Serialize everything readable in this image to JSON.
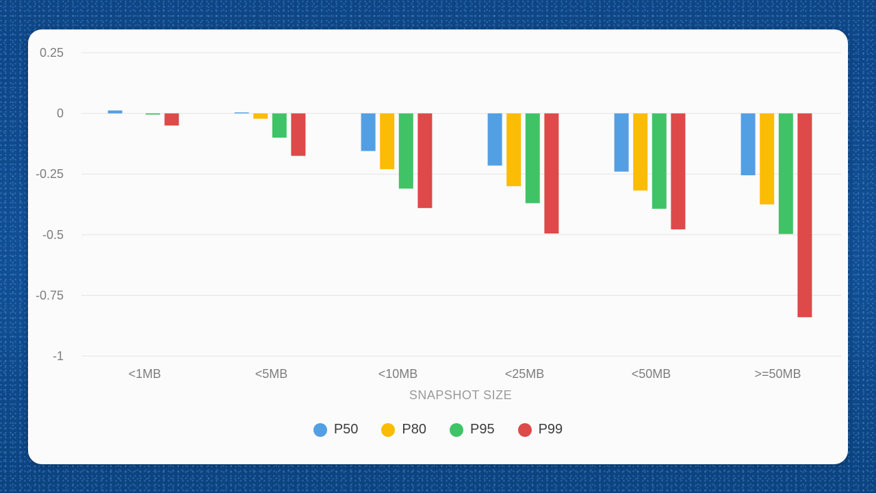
{
  "chart_data": {
    "type": "bar",
    "xlabel": "SNAPSHOT SIZE",
    "ylabel": "",
    "ylim": [
      -1,
      0.25
    ],
    "yticks": [
      "0.25",
      "0",
      "-0.25",
      "-0.5",
      "-0.75",
      "-1"
    ],
    "ytick_values": [
      0.25,
      0,
      -0.25,
      -0.5,
      -0.75,
      -1
    ],
    "categories": [
      "<1MB",
      "<5MB",
      "<10MB",
      "<25MB",
      "<50MB",
      ">=50MB"
    ],
    "series": [
      {
        "name": "P50",
        "color": "#539fe3",
        "values": [
          0.012,
          0.004,
          -0.155,
          -0.215,
          -0.24,
          -0.255
        ]
      },
      {
        "name": "P80",
        "color": "#fbbc05",
        "values": [
          0.0,
          -0.022,
          -0.23,
          -0.3,
          -0.318,
          -0.375
        ]
      },
      {
        "name": "P95",
        "color": "#40c366",
        "values": [
          -0.005,
          -0.1,
          -0.31,
          -0.37,
          -0.393,
          -0.497
        ]
      },
      {
        "name": "P99",
        "color": "#de4949",
        "values": [
          -0.05,
          -0.175,
          -0.39,
          -0.495,
          -0.478,
          -0.84
        ]
      }
    ],
    "grid": true,
    "legend_position": "bottom"
  }
}
